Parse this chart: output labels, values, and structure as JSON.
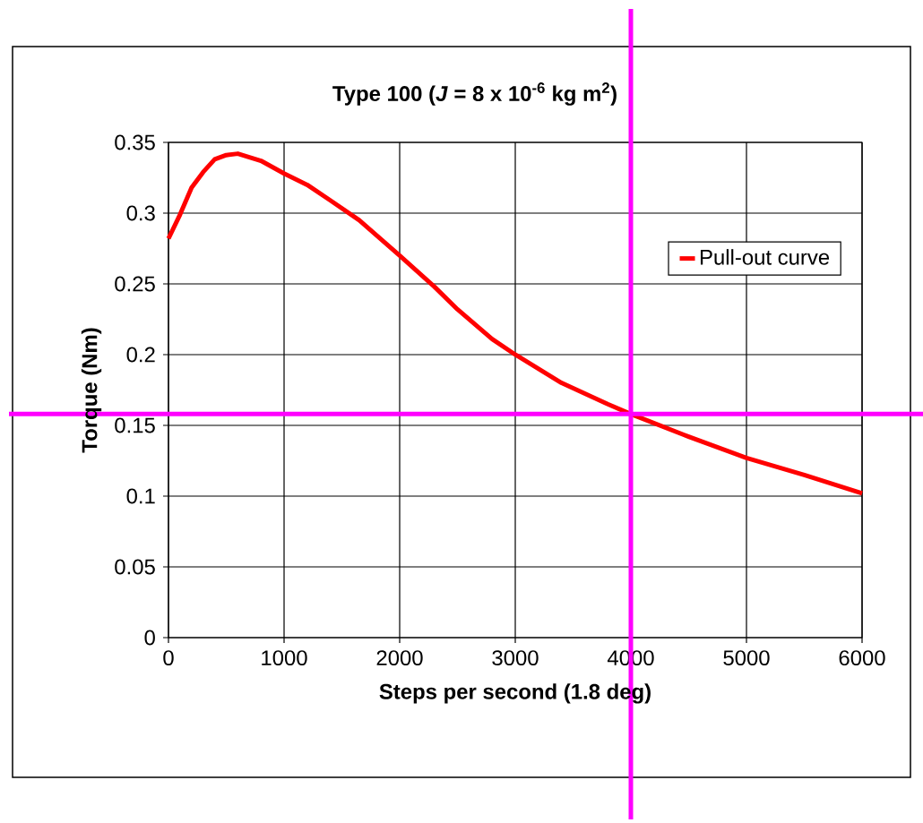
{
  "chart_data": {
    "type": "line",
    "title": "Type 100 (*J* = 8 x 10$^{-6}$ kg m$^{2}$)",
    "xlabel": "Steps per second (1.8 deg)",
    "ylabel": "Torque (Nm)",
    "series": [
      {
        "name": "Pull-out curve",
        "color": "#ff0000",
        "x": [
          0,
          100,
          200,
          300,
          400,
          500,
          600,
          800,
          1000,
          1200,
          1400,
          1650,
          2000,
          2300,
          2500,
          2800,
          3000,
          3400,
          3800,
          4000,
          4500,
          5000,
          5500,
          6000
        ],
        "values": [
          0.282,
          0.299,
          0.318,
          0.329,
          0.338,
          0.341,
          0.342,
          0.337,
          0.328,
          0.32,
          0.309,
          0.295,
          0.27,
          0.248,
          0.232,
          0.211,
          0.2,
          0.18,
          0.165,
          0.158,
          0.142,
          0.127,
          0.115,
          0.102
        ]
      }
    ],
    "xlim": [
      0,
      6000
    ],
    "ylim": [
      0,
      0.35
    ],
    "xticks": [
      0,
      1000,
      2000,
      3000,
      4000,
      5000,
      6000
    ],
    "yticks": [
      0,
      0.05,
      0.1,
      0.15,
      0.2,
      0.25,
      0.3,
      0.35
    ],
    "grid": true,
    "legend": "top right",
    "marker": "none",
    "line_style": "solid",
    "ref_lines": [
      {
        "axis": "x",
        "value": 4000,
        "color": "#ff00ff"
      },
      {
        "axis": "y",
        "value": 0.158,
        "color": "#ff00ff"
      }
    ]
  }
}
